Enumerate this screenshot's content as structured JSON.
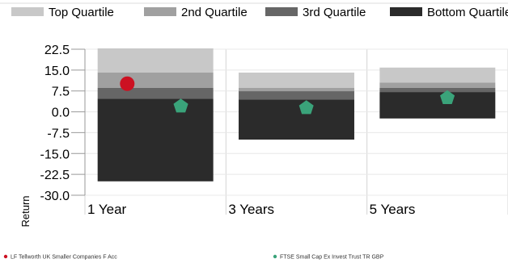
{
  "chart_data": {
    "type": "bar",
    "subtype": "quartile-range",
    "categories": [
      "1 Year",
      "3 Years",
      "5 Years"
    ],
    "ylabel": "Return",
    "ylim": [
      -30.0,
      22.5
    ],
    "yticks": [
      "22.5",
      "15.0",
      "7.5",
      "0.0",
      "-7.5",
      "-15.0",
      "-22.5",
      "-30.0"
    ],
    "grid": true,
    "quartiles": [
      {
        "name": "Top Quartile",
        "color": "#c8c8c8",
        "ranges": [
          [
            14.1,
            22.8
          ],
          [
            8.6,
            14.1
          ],
          [
            10.5,
            15.9
          ]
        ]
      },
      {
        "name": "2nd Quartile",
        "color": "#a0a0a0",
        "ranges": [
          [
            8.6,
            14.1
          ],
          [
            7.4,
            8.6
          ],
          [
            8.6,
            10.5
          ]
        ]
      },
      {
        "name": "3rd Quartile",
        "color": "#666666",
        "ranges": [
          [
            4.7,
            8.6
          ],
          [
            4.4,
            7.4
          ],
          [
            7.1,
            8.6
          ]
        ]
      },
      {
        "name": "Bottom Quartile",
        "color": "#2b2b2b",
        "ranges": [
          [
            -25.0,
            4.7
          ],
          [
            -10.0,
            4.4
          ],
          [
            -2.4,
            7.1
          ]
        ]
      }
    ],
    "series": [
      {
        "name": "LF Tellworth UK Smaller Companies F Acc",
        "marker": "circle",
        "color": "#cc1122",
        "values": [
          10.1,
          null,
          null
        ]
      },
      {
        "name": "FTSE Small Cap Ex Invest Trust TR GBP",
        "marker": "pentagon",
        "color": "#3aa37a",
        "values": [
          2.0,
          1.4,
          5.0
        ]
      }
    ],
    "legend_position": "top"
  }
}
